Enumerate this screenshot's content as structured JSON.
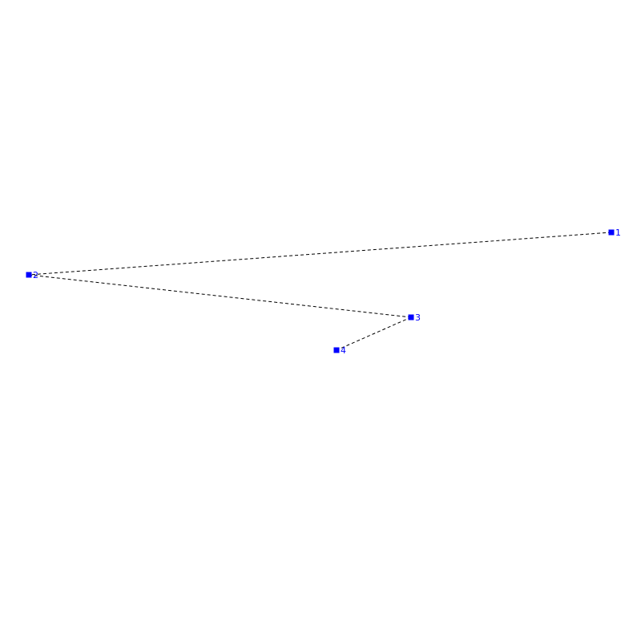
{
  "diagram": {
    "node_color": "#0000ff",
    "edge_color": "#000000",
    "edge_style": "dashed",
    "nodes": [
      {
        "id": "1",
        "label": "1"
      },
      {
        "id": "2",
        "label": "2"
      },
      {
        "id": "3",
        "label": "3"
      },
      {
        "id": "4",
        "label": "4"
      }
    ],
    "edges": [
      {
        "from": "1",
        "to": "2"
      },
      {
        "from": "2",
        "to": "3"
      },
      {
        "from": "3",
        "to": "4"
      }
    ]
  }
}
